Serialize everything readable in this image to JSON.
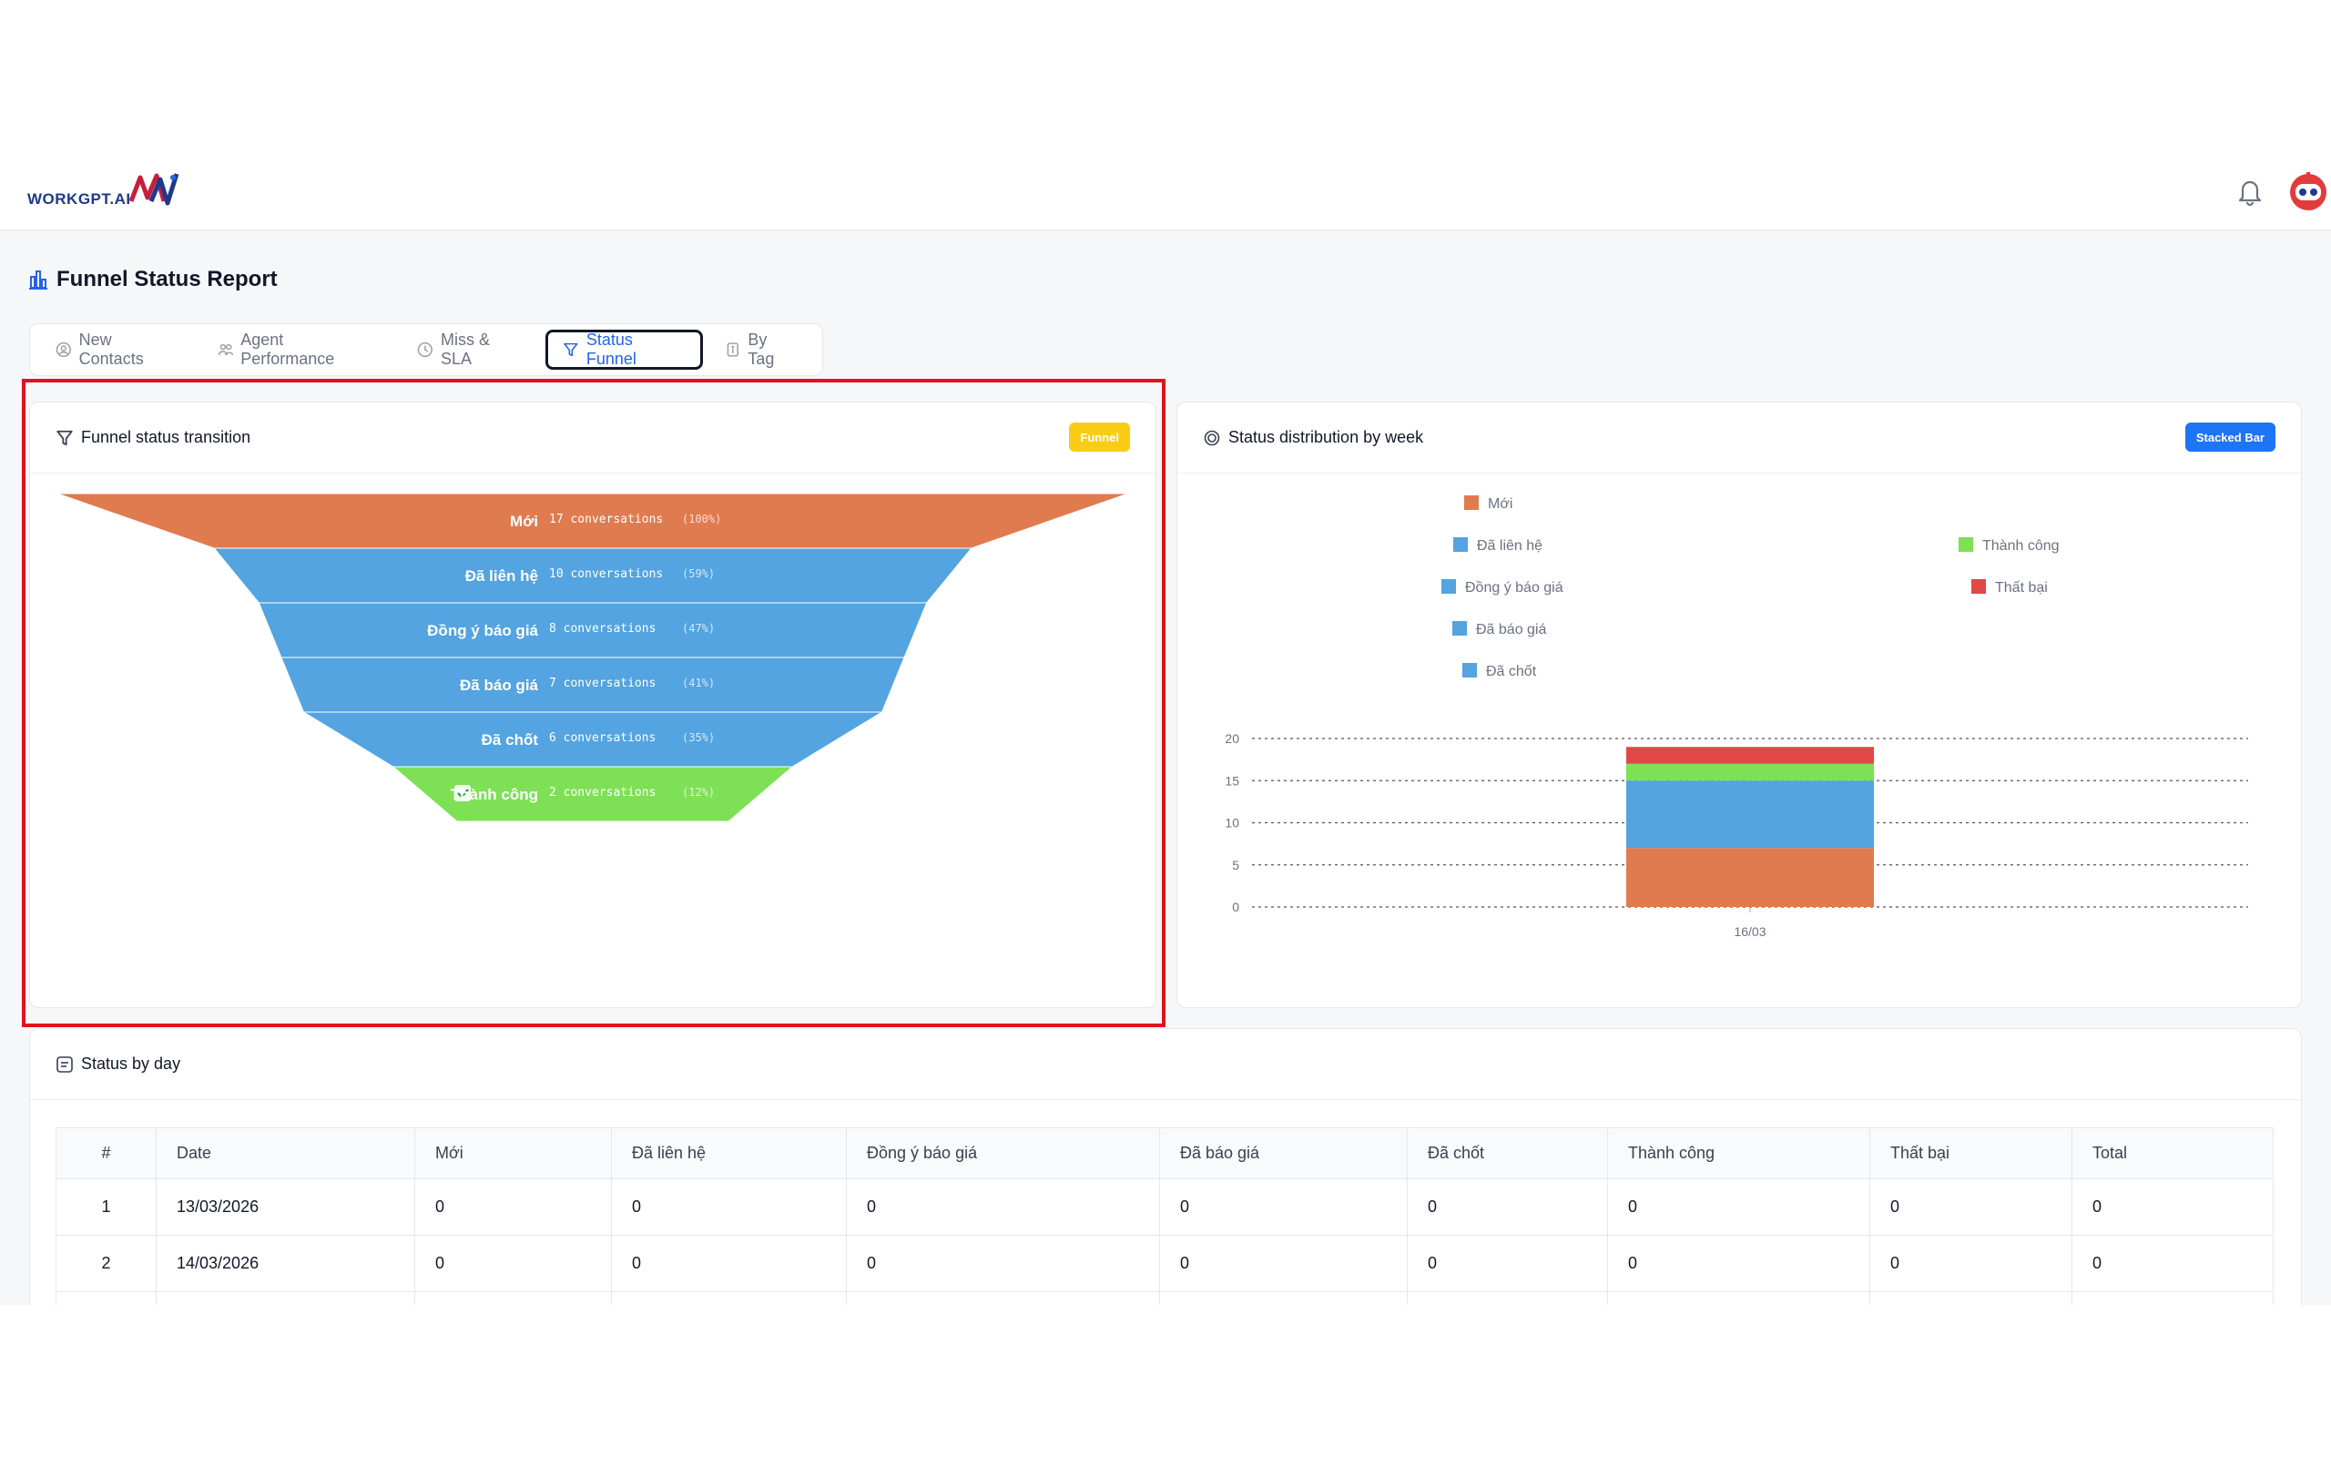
{
  "brand": {
    "logo_text": "WORKGPT.AI"
  },
  "header": {
    "bell_icon": "bell-icon",
    "avatar_icon": "robot-avatar-icon"
  },
  "page": {
    "title": "Funnel Status Report",
    "title_icon": "bar-chart-icon"
  },
  "tabs": [
    {
      "label": "New Contacts",
      "icon": "user-circle-icon",
      "active": false
    },
    {
      "label": "Agent Performance",
      "icon": "users-icon",
      "active": false
    },
    {
      "label": "Miss & SLA",
      "icon": "clock-icon",
      "active": false
    },
    {
      "label": "Status Funnel",
      "icon": "filter-icon",
      "active": true
    },
    {
      "label": "By Tag",
      "icon": "tag-icon",
      "active": false
    }
  ],
  "funnel_card": {
    "title": "Funnel status transition",
    "badge": "Funnel"
  },
  "week_card": {
    "title": "Status distribution by week",
    "badge": "Stacked Bar"
  },
  "colors": {
    "orange": "#e07b4f",
    "blue": "#53a4e0",
    "green": "#7ee055",
    "red": "#e04848",
    "highlight": "#e0131b"
  },
  "chart_data": [
    {
      "type": "funnel",
      "title": "Funnel status transition",
      "stages": [
        {
          "label": "Mới",
          "value": 17,
          "unit": "conversations",
          "percent": "(100%)"
        },
        {
          "label": "Đã liên hệ",
          "value": 10,
          "unit": "conversations",
          "percent": "(59%)"
        },
        {
          "label": "Đồng ý báo giá",
          "value": 8,
          "unit": "conversations",
          "percent": "(47%)"
        },
        {
          "label": "Đã báo giá",
          "value": 7,
          "unit": "conversations",
          "percent": "(41%)"
        },
        {
          "label": "Đã chốt",
          "value": 6,
          "unit": "conversations",
          "percent": "(35%)"
        },
        {
          "label": "Thành công",
          "value": 2,
          "unit": "conversations",
          "percent": "(12%)"
        }
      ]
    },
    {
      "type": "bar",
      "stacked": true,
      "title": "Status distribution by week",
      "categories": [
        "16/03"
      ],
      "yticks": [
        0,
        5,
        10,
        15,
        20
      ],
      "ylim": [
        0,
        20
      ],
      "grid": true,
      "series": [
        {
          "name": "Mới",
          "color": "#e07b4f",
          "values": [
            7
          ]
        },
        {
          "name": "Đã liên hệ",
          "color": "#53a4e0",
          "values": [
            0
          ]
        },
        {
          "name": "Đồng ý báo giá",
          "color": "#53a4e0",
          "values": [
            0
          ]
        },
        {
          "name": "Đã báo giá",
          "color": "#53a4e0",
          "values": [
            0
          ]
        },
        {
          "name": "Đã chốt",
          "color": "#53a4e0",
          "values": [
            8
          ]
        },
        {
          "name": "Thành công",
          "color": "#7ee055",
          "values": [
            2
          ]
        },
        {
          "name": "Thất bại",
          "color": "#e04848",
          "values": [
            2
          ]
        }
      ]
    }
  ],
  "status_by_day": {
    "title": "Status by day",
    "columns": [
      "#",
      "Date",
      "Mới",
      "Đã liên hệ",
      "Đồng ý báo giá",
      "Đã báo giá",
      "Đã chốt",
      "Thành công",
      "Thất bại",
      "Total"
    ],
    "rows": [
      [
        "1",
        "13/03/2026",
        "0",
        "0",
        "0",
        "0",
        "0",
        "0",
        "0",
        "0"
      ],
      [
        "2",
        "14/03/2026",
        "0",
        "0",
        "0",
        "0",
        "0",
        "0",
        "0",
        "0"
      ]
    ]
  }
}
